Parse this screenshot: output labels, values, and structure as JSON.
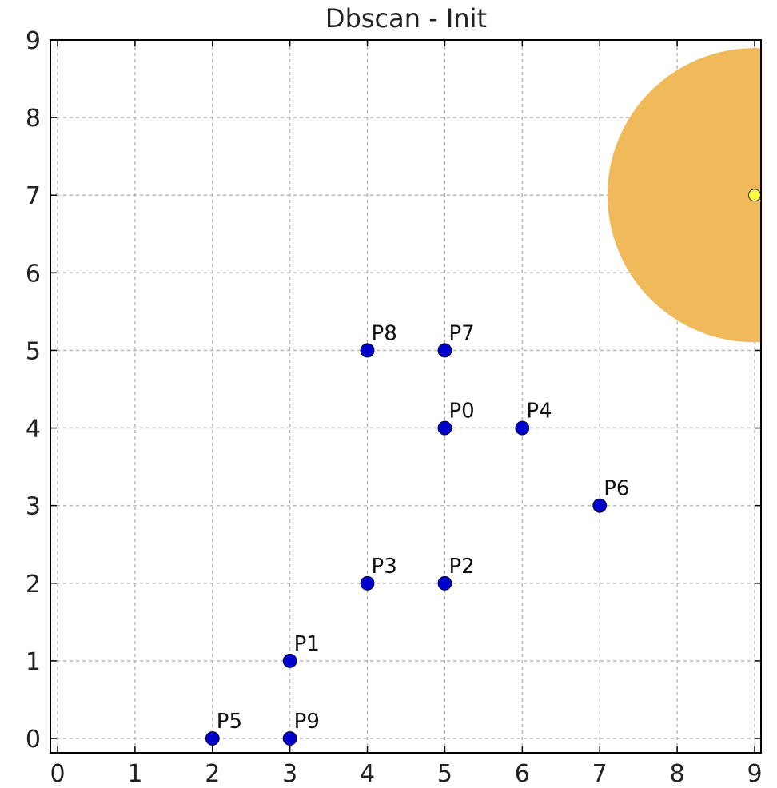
{
  "chart_data": {
    "type": "scatter",
    "title": "Dbscan - Init",
    "xlabel": "",
    "ylabel": "",
    "xlim": [
      0,
      9
    ],
    "ylim": [
      0,
      9
    ],
    "xticks": [
      "0",
      "1",
      "2",
      "3",
      "4",
      "5",
      "6",
      "7",
      "8",
      "9"
    ],
    "yticks": [
      "0",
      "1",
      "2",
      "3",
      "4",
      "5",
      "6",
      "7",
      "8",
      "9"
    ],
    "grid": true,
    "point_color": "#0000cc",
    "points": [
      {
        "label": "P0",
        "x": 5,
        "y": 4
      },
      {
        "label": "P1",
        "x": 3,
        "y": 1
      },
      {
        "label": "P2",
        "x": 5,
        "y": 2
      },
      {
        "label": "P3",
        "x": 4,
        "y": 2
      },
      {
        "label": "P4",
        "x": 6,
        "y": 4
      },
      {
        "label": "P5",
        "x": 2,
        "y": 0
      },
      {
        "label": "P6",
        "x": 7,
        "y": 3
      },
      {
        "label": "P7",
        "x": 5,
        "y": 5
      },
      {
        "label": "P8",
        "x": 4,
        "y": 5
      },
      {
        "label": "P9",
        "x": 3,
        "y": 0
      }
    ],
    "highlight": {
      "x": 9,
      "y": 7,
      "radius": 1.9,
      "circle_color": "#f0b95a",
      "point_color": "#ffff44"
    }
  }
}
